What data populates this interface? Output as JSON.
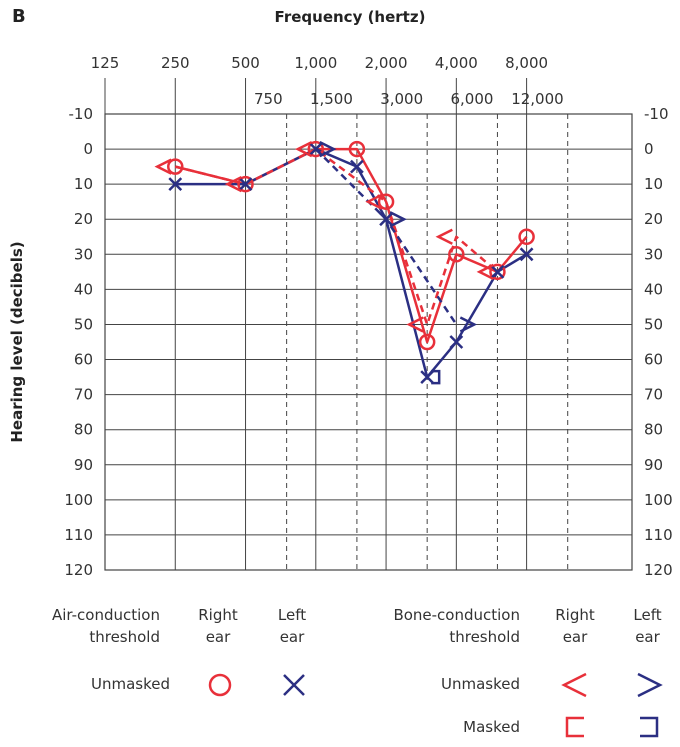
{
  "panel_label": "B",
  "legend": {
    "air_title_1": "Air-conduction",
    "air_title_2": "threshold",
    "bone_title_1": "Bone-conduction",
    "bone_title_2": "threshold",
    "right_ear_1": "Right",
    "right_ear_2": "ear",
    "left_ear_1": "Left",
    "left_ear_2": "ear",
    "unmasked": "Unmasked",
    "masked": "Masked"
  },
  "colors": {
    "right": "#e8303a",
    "left": "#2b2f83",
    "grid": "#444444"
  },
  "chart_data": {
    "type": "line",
    "title": "",
    "xlabel": "Frequency (hertz)",
    "ylabel": "Hearing level (decibels)",
    "x_scale": "log2",
    "ylim": [
      -10,
      120
    ],
    "y_inverted": true,
    "x_ticks_top": [
      "125",
      "250",
      "500",
      "1,000",
      "2,000",
      "4,000",
      "8,000"
    ],
    "x_ticks_second": [
      "750",
      "1,500",
      "3,000",
      "6,000",
      "12,000"
    ],
    "y_ticks": [
      -10,
      0,
      10,
      20,
      30,
      40,
      50,
      60,
      70,
      80,
      90,
      100,
      110,
      120
    ],
    "series": [
      {
        "name": "Right ear air-conduction threshold, unmasked",
        "marker": "circle",
        "line": "solid",
        "ear": "right",
        "x": [
          250,
          500,
          1000,
          1500,
          2000,
          3000,
          4000,
          6000,
          8000
        ],
        "y": [
          5,
          10,
          0,
          0,
          15,
          55,
          30,
          35,
          25
        ]
      },
      {
        "name": "Left ear air-conduction threshold, unmasked",
        "marker": "x",
        "line": "solid",
        "ear": "left",
        "x": [
          250,
          500,
          1000,
          1500,
          2000,
          3000,
          4000,
          6000,
          8000
        ],
        "y": [
          10,
          10,
          0,
          5,
          20,
          65,
          55,
          35,
          30
        ]
      },
      {
        "name": "Right ear bone-conduction threshold, unmasked",
        "marker": "lt",
        "line": "dashed",
        "ear": "right",
        "x": [
          250,
          500,
          1000,
          2000,
          3000,
          4000,
          6000
        ],
        "y": [
          5,
          10,
          0,
          15,
          50,
          25,
          35
        ]
      },
      {
        "name": "Left ear bone-conduction threshold, unmasked",
        "marker": "gt",
        "line": "dashed",
        "ear": "left",
        "x": [
          1000,
          2000,
          4000
        ],
        "y": [
          0,
          20,
          50
        ]
      },
      {
        "name": "Left ear bone-conduction threshold, masked",
        "marker": "rbracket",
        "line": "dashed",
        "ear": "left",
        "x": [
          3000
        ],
        "y": [
          65
        ]
      }
    ]
  }
}
